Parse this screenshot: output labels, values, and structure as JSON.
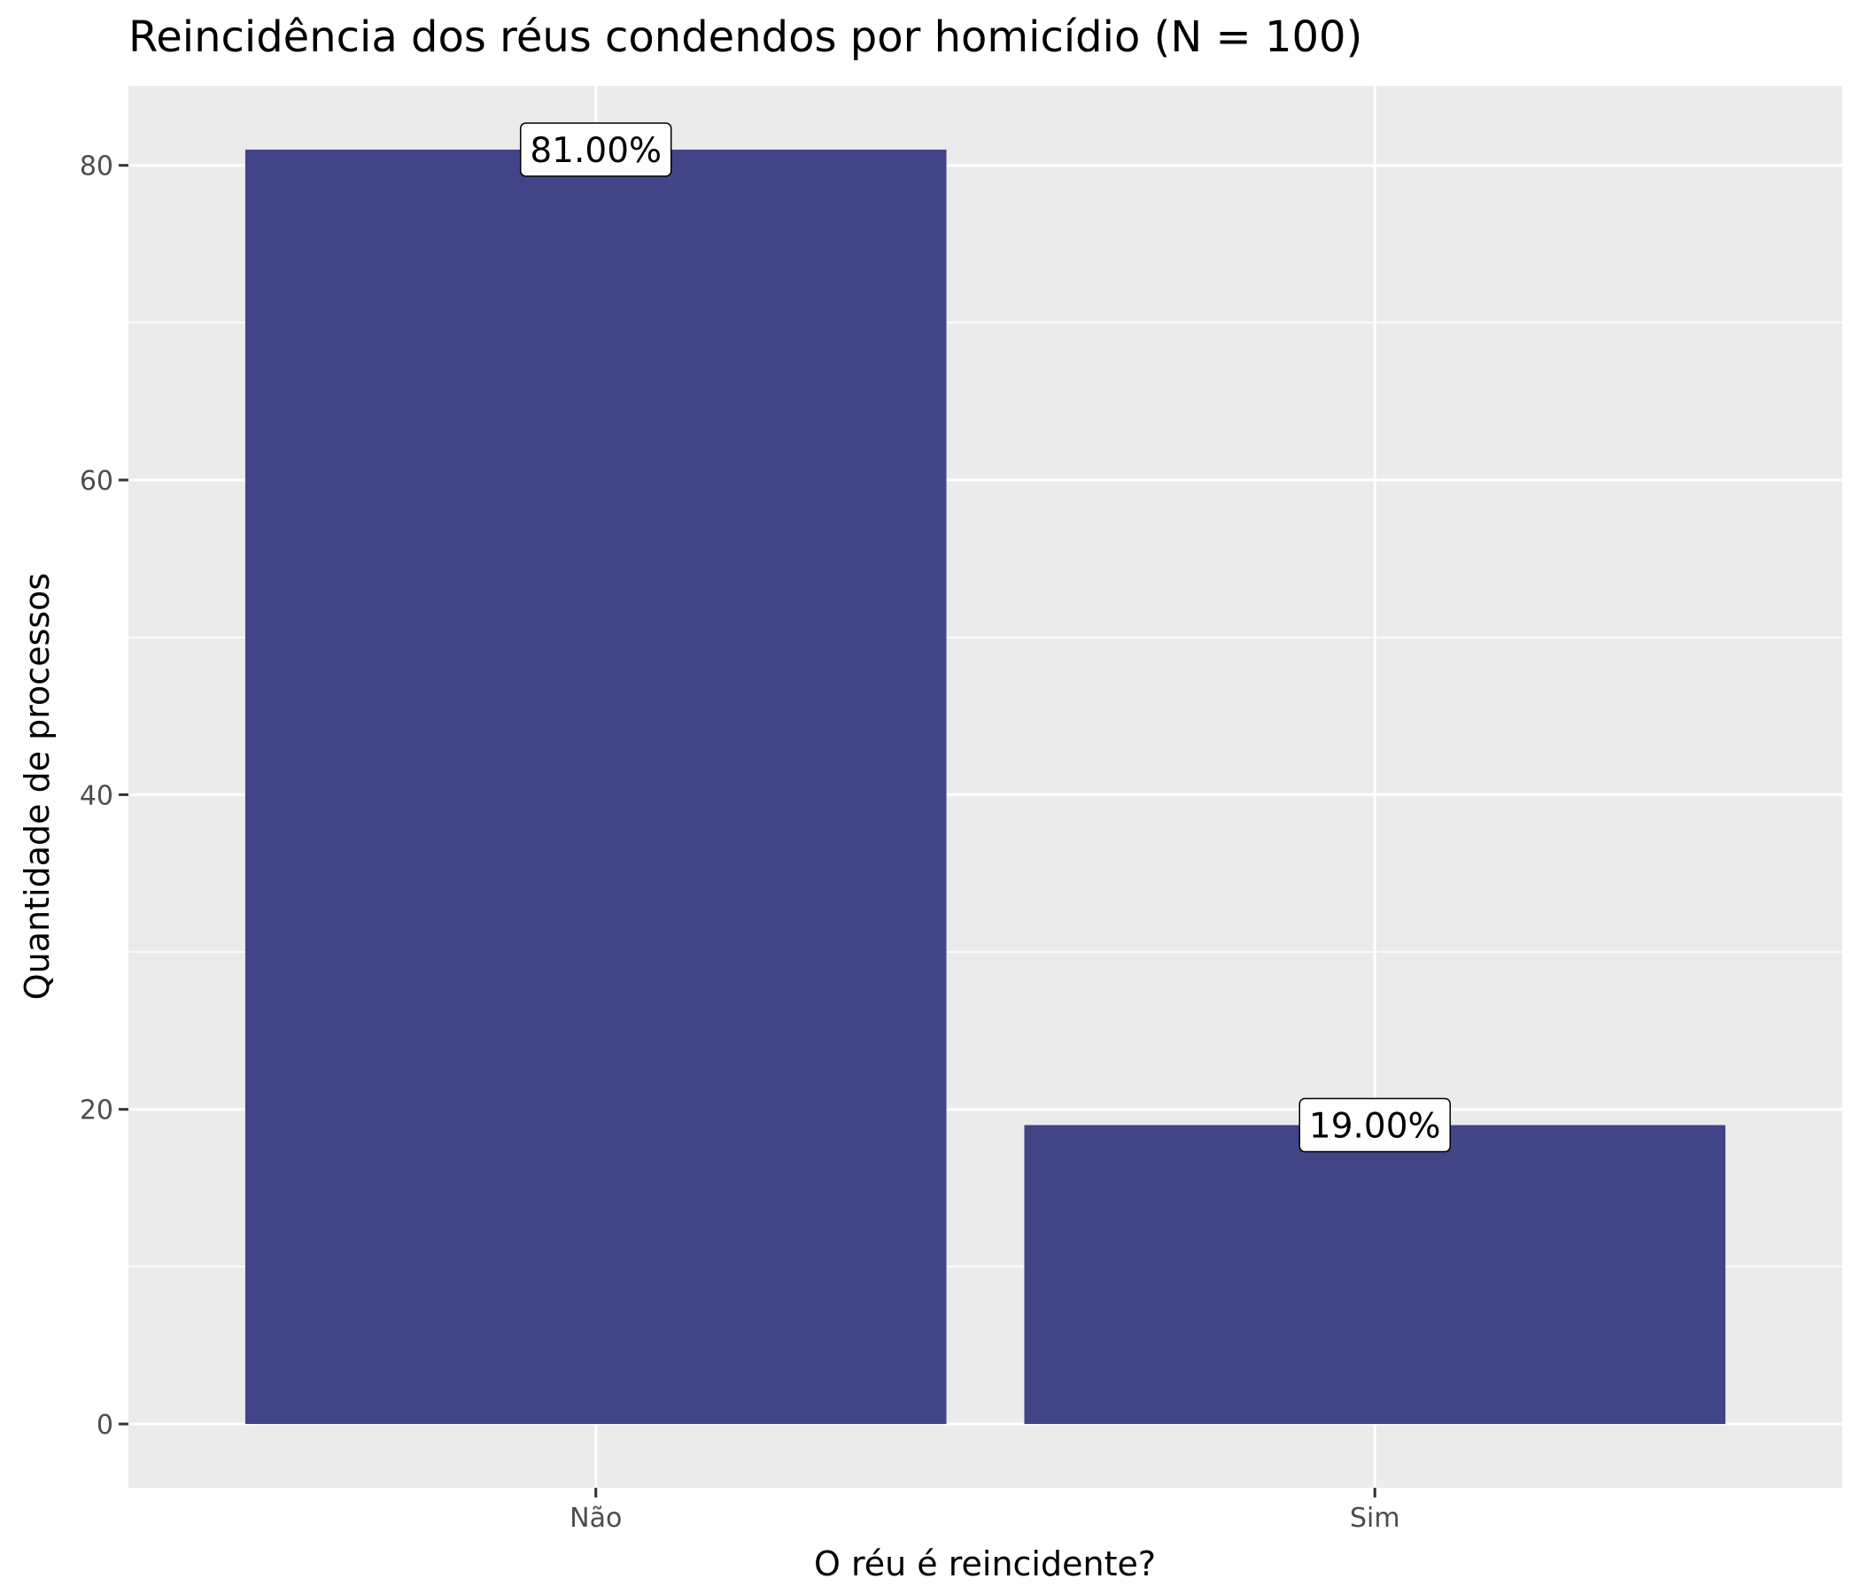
{
  "chart_data": {
    "type": "bar",
    "title": "Reincidência dos réus condendos por homicídio (N = 100)",
    "xlabel": "O réu é reincidente?",
    "ylabel": "Quantidade de processos",
    "categories": [
      "Não",
      "Sim"
    ],
    "values": [
      81,
      19
    ],
    "data_labels": [
      "81.00%",
      "19.00%"
    ],
    "yticks": [
      0,
      20,
      40,
      60,
      80
    ],
    "ylim": [
      -4.05,
      85.05
    ],
    "grid": true,
    "legend": "none",
    "colors": {
      "bar": "#414487",
      "panel_background": "#ebebeb",
      "grid": "#ffffff",
      "label_fill": "#ffffff",
      "label_border": "#000000"
    }
  }
}
